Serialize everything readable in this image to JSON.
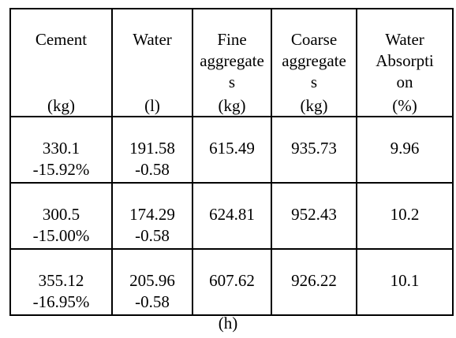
{
  "table": {
    "headers": [
      {
        "name": "Cement",
        "unit": "(kg)"
      },
      {
        "name": "Water",
        "unit": "(l)"
      },
      {
        "name": "Fine\naggregate\ns",
        "unit": "(kg)"
      },
      {
        "name": "Coarse\naggregate\ns",
        "unit": "(kg)"
      },
      {
        "name": "Water\nAbsorpti\non",
        "unit": "(%)"
      }
    ],
    "rows": [
      {
        "cement": "330.1",
        "cement_change": "-15.92%",
        "water": "191.58",
        "water_change": "-0.58",
        "fine": "615.49",
        "coarse": "935.73",
        "absorption": "9.96"
      },
      {
        "cement": "300.5",
        "cement_change": "-15.00%",
        "water": "174.29",
        "water_change": "-0.58",
        "fine": "624.81",
        "coarse": "952.43",
        "absorption": "10.2"
      },
      {
        "cement": "355.12",
        "cement_change": "-16.95%",
        "water": "205.96",
        "water_change": "-0.58",
        "fine": "607.62",
        "coarse": "926.22",
        "absorption": "10.1"
      }
    ]
  },
  "caption": "(h)"
}
